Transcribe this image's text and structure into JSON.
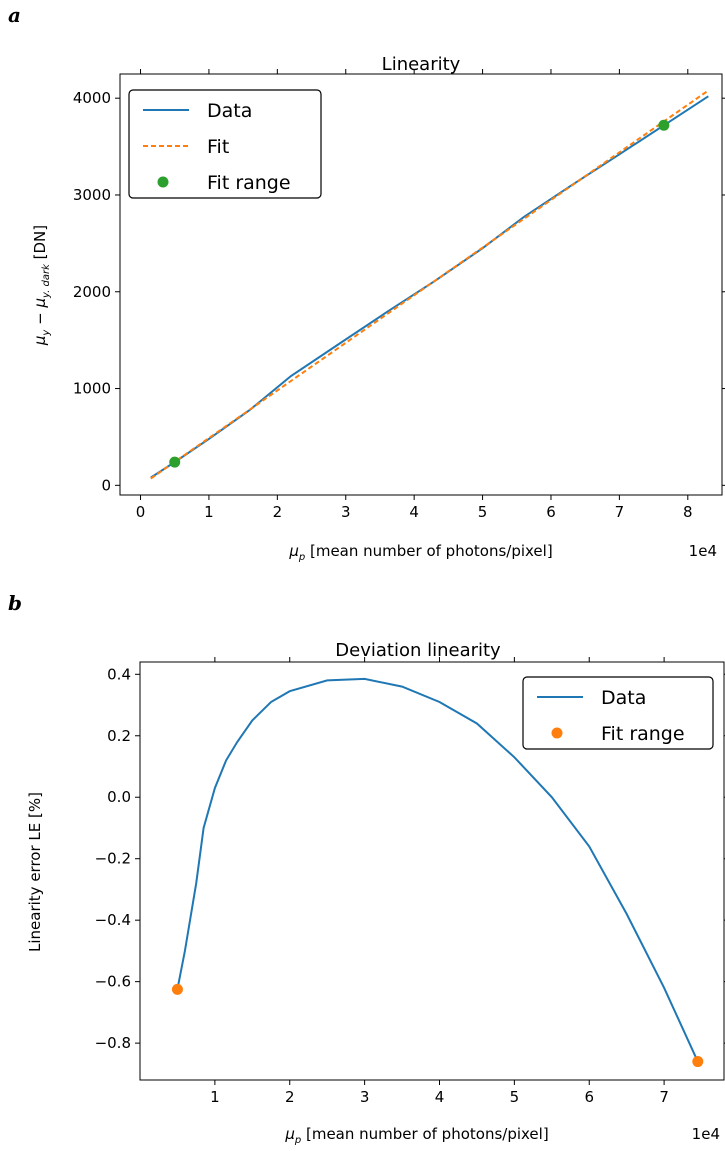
{
  "chart_data": [
    {
      "panel": "a",
      "type": "line",
      "title": "Linearity",
      "xlabel": "μ_p [mean number of photons/pixel]",
      "ylabel": "μ_y − μ_y.dark [DN]",
      "x_scale_label": "1e4",
      "xlim": [
        -0.3,
        8.5
      ],
      "ylim": [
        -100,
        4250
      ],
      "xticks": [
        0,
        1,
        2,
        3,
        4,
        5,
        6,
        7,
        8
      ],
      "yticks": [
        0,
        1000,
        2000,
        3000,
        4000
      ],
      "grid": false,
      "legend_position": "top-left",
      "series": [
        {
          "name": "Data",
          "style": "line",
          "color": "#1f77b4",
          "x": [
            0.15,
            0.5,
            1.0,
            1.6,
            2.2,
            2.9,
            3.6,
            4.3,
            5.0,
            5.6,
            6.3,
            7.0,
            7.65,
            8.3
          ],
          "y": [
            80,
            240,
            480,
            780,
            1130,
            1460,
            1790,
            2110,
            2450,
            2770,
            3100,
            3420,
            3720,
            4020
          ]
        },
        {
          "name": "Fit",
          "style": "dashed",
          "color": "#ff7f0e",
          "x": [
            0.15,
            8.3
          ],
          "y": [
            70,
            4080
          ]
        },
        {
          "name": "Fit range",
          "style": "points",
          "color": "#2ca02c",
          "x": [
            0.5,
            7.65
          ],
          "y": [
            240,
            3720
          ]
        }
      ]
    },
    {
      "panel": "b",
      "type": "line",
      "title": "Deviation linearity",
      "xlabel": "μ_p [mean number of photons/pixel]",
      "ylabel": "Linearity error LE [%]",
      "x_scale_label": "1e4",
      "xlim": [
        0.0,
        7.8
      ],
      "ylim": [
        -0.92,
        0.44
      ],
      "xticks": [
        1,
        2,
        3,
        4,
        5,
        6,
        7
      ],
      "yticks": [
        -0.8,
        -0.6,
        -0.4,
        -0.2,
        0.0,
        0.2,
        0.4
      ],
      "ytick_labels": [
        "−0.8",
        "−0.6",
        "−0.4",
        "−0.2",
        "0.0",
        "0.2",
        "0.4"
      ],
      "grid": false,
      "legend_position": "top-right",
      "series": [
        {
          "name": "Data",
          "style": "line",
          "color": "#1f77b4",
          "x": [
            0.5,
            0.6,
            0.75,
            0.85,
            1.0,
            1.15,
            1.3,
            1.5,
            1.75,
            2.0,
            2.5,
            3.0,
            3.5,
            4.0,
            4.5,
            5.0,
            5.5,
            6.0,
            6.5,
            7.0,
            7.45
          ],
          "y": [
            -0.625,
            -0.5,
            -0.28,
            -0.1,
            0.03,
            0.12,
            0.18,
            0.25,
            0.31,
            0.345,
            0.38,
            0.385,
            0.36,
            0.31,
            0.24,
            0.13,
            0.0,
            -0.16,
            -0.38,
            -0.62,
            -0.86
          ]
        },
        {
          "name": "Fit range",
          "style": "points",
          "color": "#ff7f0e",
          "x": [
            0.5,
            7.45
          ],
          "y": [
            -0.625,
            -0.86
          ]
        }
      ]
    }
  ],
  "panels": {
    "a": {
      "letter": "a",
      "yunit_main": "μ",
      "xunit_main": "μ"
    },
    "b": {
      "letter": "b"
    }
  },
  "labels": {
    "a_ylabel_main": "μ",
    "a_ylabel_sub1": "y",
    "a_ylabel_mid": " − μ",
    "a_ylabel_sub2": "y. dark",
    "a_ylabel_tail": " [DN]",
    "x_mu": "μ",
    "x_sub": "p",
    "x_tail": " [mean number of photons/pixel]",
    "b_ylabel": "Linearity error LE [%]"
  }
}
